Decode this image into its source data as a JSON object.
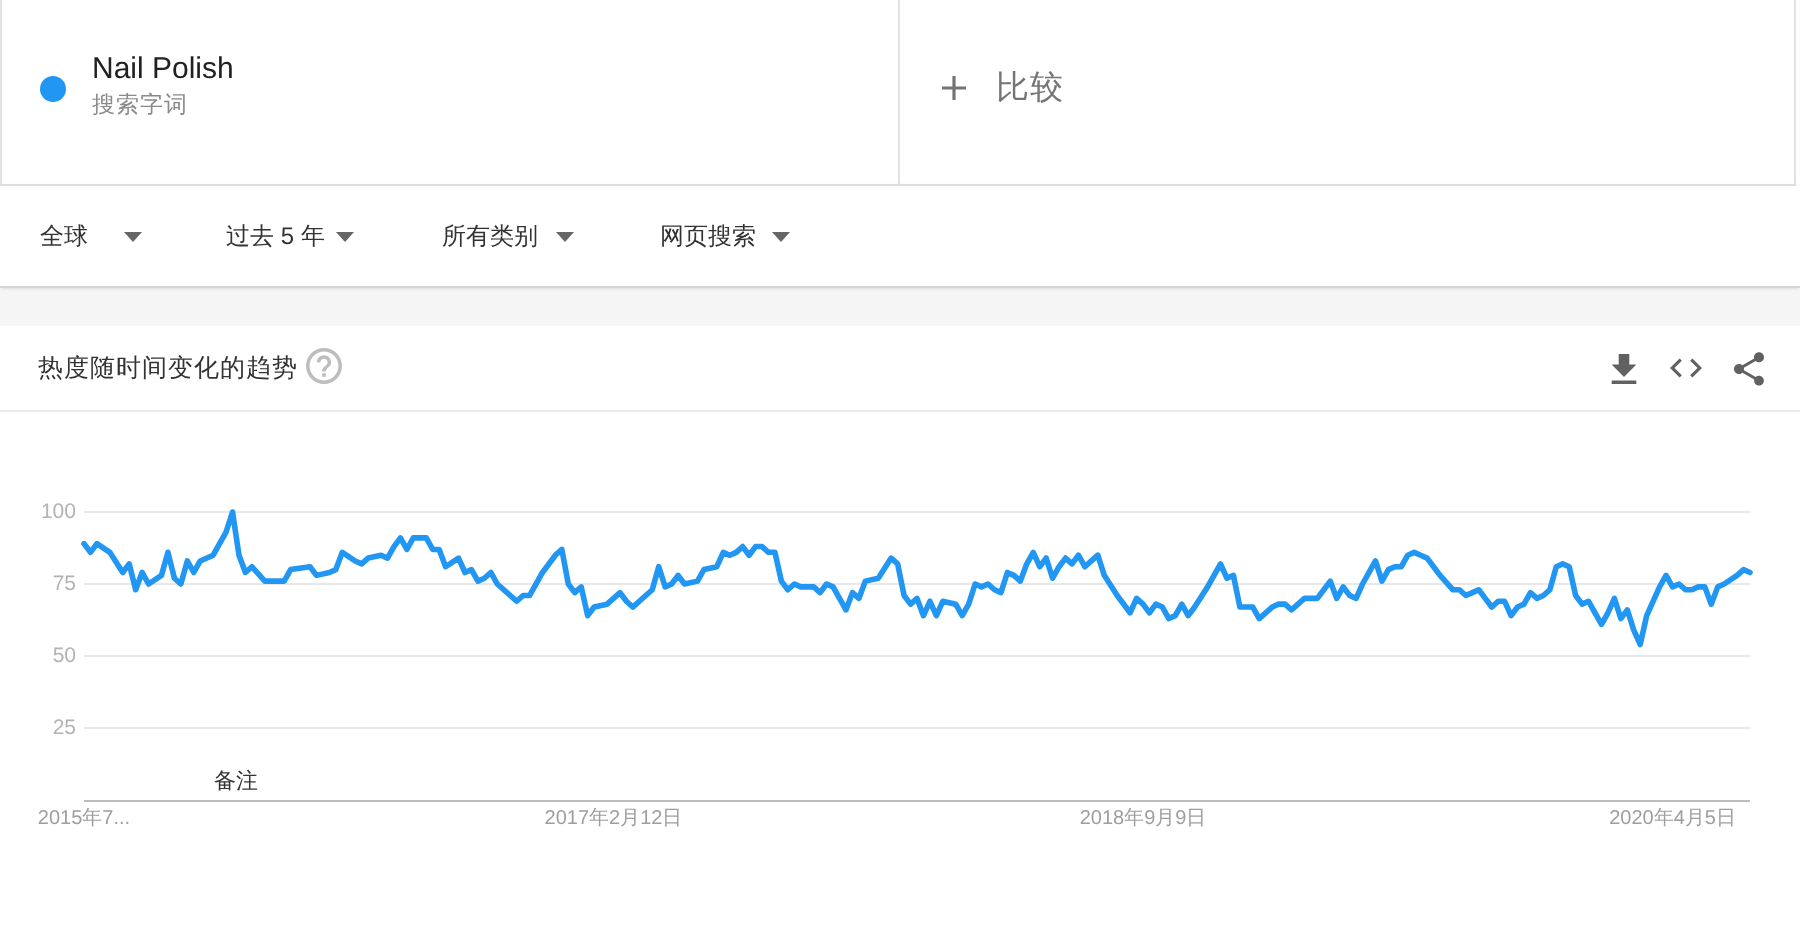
{
  "chart_data": {
    "type": "line",
    "title": "热度随时间变化的趋势",
    "annotations": [
      "搜索字词",
      "比较",
      "全球",
      "过去 5 年",
      "所有类别",
      "网页搜索",
      "备注"
    ],
    "legend": "top left",
    "grid": "y",
    "xlim": [
      "2015-07-19",
      "2020-06-28"
    ],
    "xticks": [
      {
        "value": "2015-07-19",
        "label": "2015年7..."
      },
      {
        "value": "2017-02-12",
        "label": "2017年2月12日"
      },
      {
        "value": "2018-09-09",
        "label": "2018年9月9日"
      },
      {
        "value": "2020-04-05",
        "label": "2020年4月5日"
      }
    ],
    "ylim": [
      0,
      100
    ],
    "yticks": [
      {
        "value": 0,
        "label": null
      },
      25,
      50,
      75,
      100
    ],
    "x": [
      "2015-07-19",
      "2015-07-26",
      "2015-08-02",
      "2015-08-16",
      "2015-08-30",
      "2015-09-06",
      "2015-09-13",
      "2015-09-20",
      "2015-09-27",
      "2015-10-11",
      "2015-10-18",
      "2015-10-25",
      "2015-11-01",
      "2015-11-08",
      "2015-11-15",
      "2015-11-22",
      "2015-12-06",
      "2015-12-20",
      "2015-12-27",
      "2016-01-03",
      "2016-01-10",
      "2016-01-17",
      "2016-01-31",
      "2016-02-21",
      "2016-02-28",
      "2016-03-20",
      "2016-03-27",
      "2016-04-10",
      "2016-04-17",
      "2016-04-24",
      "2016-05-08",
      "2016-05-15",
      "2016-05-22",
      "2016-06-05",
      "2016-06-12",
      "2016-06-19",
      "2016-06-26",
      "2016-07-03",
      "2016-07-10",
      "2016-07-24",
      "2016-07-31",
      "2016-08-07",
      "2016-08-14",
      "2016-08-28",
      "2016-09-04",
      "2016-09-11",
      "2016-09-18",
      "2016-09-25",
      "2016-10-02",
      "2016-10-09",
      "2016-10-30",
      "2016-11-06",
      "2016-11-13",
      "2016-11-27",
      "2016-12-11",
      "2016-12-18",
      "2016-12-25",
      "2017-01-01",
      "2017-01-08",
      "2017-01-15",
      "2017-01-22",
      "2017-02-05",
      "2017-02-19",
      "2017-02-26",
      "2017-03-05",
      "2017-03-12",
      "2017-03-19",
      "2017-03-26",
      "2017-04-02",
      "2017-04-09",
      "2017-04-16",
      "2017-04-23",
      "2017-04-30",
      "2017-05-14",
      "2017-05-21",
      "2017-06-04",
      "2017-06-11",
      "2017-06-18",
      "2017-06-25",
      "2017-07-02",
      "2017-07-09",
      "2017-07-16",
      "2017-07-23",
      "2017-07-30",
      "2017-08-06",
      "2017-08-13",
      "2017-08-20",
      "2017-08-27",
      "2017-09-03",
      "2017-09-17",
      "2017-09-24",
      "2017-10-01",
      "2017-10-08",
      "2017-10-15",
      "2017-10-22",
      "2017-10-29",
      "2017-11-05",
      "2017-11-12",
      "2017-11-26",
      "2017-12-10",
      "2017-12-17",
      "2017-12-24",
      "2017-12-31",
      "2018-01-07",
      "2018-01-14",
      "2018-01-21",
      "2018-01-28",
      "2018-02-04",
      "2018-02-18",
      "2018-02-25",
      "2018-03-04",
      "2018-03-11",
      "2018-03-18",
      "2018-03-25",
      "2018-04-01",
      "2018-04-08",
      "2018-04-15",
      "2018-04-22",
      "2018-04-29",
      "2018-05-06",
      "2018-05-13",
      "2018-05-20",
      "2018-05-27",
      "2018-06-03",
      "2018-06-10",
      "2018-06-17",
      "2018-06-24",
      "2018-07-01",
      "2018-07-08",
      "2018-07-15",
      "2018-07-22",
      "2018-07-29",
      "2018-08-12",
      "2018-08-26",
      "2018-09-02",
      "2018-09-09",
      "2018-09-16",
      "2018-09-23",
      "2018-09-30",
      "2018-10-07",
      "2018-10-14",
      "2018-10-21",
      "2018-10-28",
      "2018-11-04",
      "2018-11-18",
      "2018-12-02",
      "2018-12-09",
      "2018-12-16",
      "2018-12-23",
      "2019-01-06",
      "2019-01-13",
      "2019-01-20",
      "2019-01-27",
      "2019-02-03",
      "2019-02-10",
      "2019-02-17",
      "2019-02-24",
      "2019-03-03",
      "2019-03-17",
      "2019-03-24",
      "2019-03-31",
      "2019-04-07",
      "2019-04-14",
      "2019-04-21",
      "2019-04-28",
      "2019-05-05",
      "2019-05-12",
      "2019-05-19",
      "2019-05-26",
      "2019-06-02",
      "2019-06-09",
      "2019-06-16",
      "2019-06-23",
      "2019-06-30",
      "2019-07-07",
      "2019-07-14",
      "2019-07-21",
      "2019-07-28",
      "2019-08-11",
      "2019-08-18",
      "2019-08-25",
      "2019-09-01",
      "2019-09-08",
      "2019-09-15",
      "2019-09-22",
      "2019-09-29",
      "2019-10-06",
      "2019-10-13",
      "2019-10-20",
      "2019-10-27",
      "2019-11-03",
      "2019-11-10",
      "2019-11-17",
      "2019-11-24",
      "2019-12-01",
      "2019-12-08",
      "2019-12-15",
      "2019-12-22",
      "2019-12-29",
      "2020-01-05",
      "2020-01-12",
      "2020-01-19",
      "2020-01-26",
      "2020-02-02",
      "2020-02-09",
      "2020-02-16",
      "2020-02-23",
      "2020-03-01",
      "2020-03-08",
      "2020-03-22",
      "2020-03-29",
      "2020-04-05",
      "2020-04-12",
      "2020-04-19",
      "2020-04-26",
      "2020-05-03",
      "2020-05-10",
      "2020-05-17",
      "2020-05-24",
      "2020-05-31",
      "2020-06-14",
      "2020-06-21",
      "2020-06-28"
    ],
    "series": [
      {
        "name": "Nail Polish",
        "color": "#2196f3",
        "values": [
          89,
          86,
          89,
          86,
          79,
          82,
          73,
          79,
          75,
          78,
          86,
          77,
          75,
          83,
          79,
          83,
          85,
          93,
          100,
          85,
          79,
          81,
          76,
          76,
          80,
          81,
          78,
          79,
          80,
          86,
          83,
          82,
          84,
          85,
          84,
          88,
          91,
          87,
          91,
          91,
          87,
          87,
          81,
          84,
          79,
          80,
          76,
          77,
          79,
          75,
          69,
          71,
          71,
          79,
          85,
          87,
          75,
          72,
          74,
          64,
          67,
          68,
          72,
          69,
          67,
          69,
          71,
          73,
          81,
          74,
          75,
          78,
          75,
          76,
          80,
          81,
          86,
          85,
          86,
          88,
          85,
          88,
          88,
          86,
          86,
          76,
          73,
          75,
          74,
          74,
          72,
          75,
          74,
          70,
          66,
          72,
          70,
          76,
          77,
          84,
          82,
          71,
          68,
          70,
          64,
          69,
          64,
          69,
          68,
          64,
          68,
          75,
          74,
          75,
          73,
          72,
          79,
          78,
          76,
          82,
          86,
          81,
          84,
          77,
          81,
          84,
          82,
          85,
          81,
          83,
          85,
          78,
          71,
          65,
          70,
          68,
          65,
          68,
          67,
          63,
          64,
          68,
          64,
          67,
          74,
          82,
          77,
          78,
          67,
          67,
          63,
          65,
          67,
          68,
          68,
          66,
          68,
          70,
          70,
          73,
          76,
          70,
          74,
          71,
          70,
          75,
          79,
          83,
          76,
          80,
          81,
          81,
          85,
          86,
          85,
          84,
          81,
          78,
          73,
          73,
          71,
          72,
          73,
          70,
          67,
          69,
          69,
          64,
          67,
          68,
          72,
          70,
          71,
          73,
          81,
          82,
          81,
          71,
          68,
          69,
          65,
          61,
          65,
          70,
          63,
          66,
          59,
          54,
          64,
          74,
          78,
          74,
          75,
          73,
          73,
          74,
          74,
          68,
          74,
          75,
          78,
          80,
          79
        ]
      }
    ]
  }
}
